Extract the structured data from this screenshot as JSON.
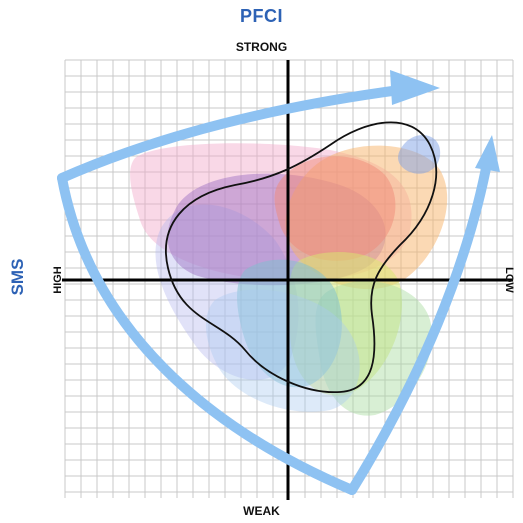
{
  "title": "PFCI",
  "axes": {
    "top": "STRONG",
    "bottom": "WEAK",
    "left": "HIGH",
    "right": "LOW",
    "side_title": "SMS"
  },
  "colors": {
    "title": "#2d62b5",
    "arrow": "#8ec2f2",
    "grid": "#c8c8c8",
    "axis": "#000000",
    "outline": "#111111"
  },
  "blobs": [
    {
      "name": "pink",
      "color": "#f1a8c9"
    },
    {
      "name": "lavender",
      "color": "#b3b6ee"
    },
    {
      "name": "purple",
      "color": "#9a6cc0"
    },
    {
      "name": "orange",
      "color": "#f7b36a"
    },
    {
      "name": "salmon",
      "color": "#f08a78"
    },
    {
      "name": "yellow-green",
      "color": "#d8ea6e"
    },
    {
      "name": "green",
      "color": "#a9dca0"
    },
    {
      "name": "teal",
      "color": "#7dbfcf"
    },
    {
      "name": "light-blue",
      "color": "#a9cbf0"
    },
    {
      "name": "blue",
      "color": "#7fa2e6"
    }
  ]
}
